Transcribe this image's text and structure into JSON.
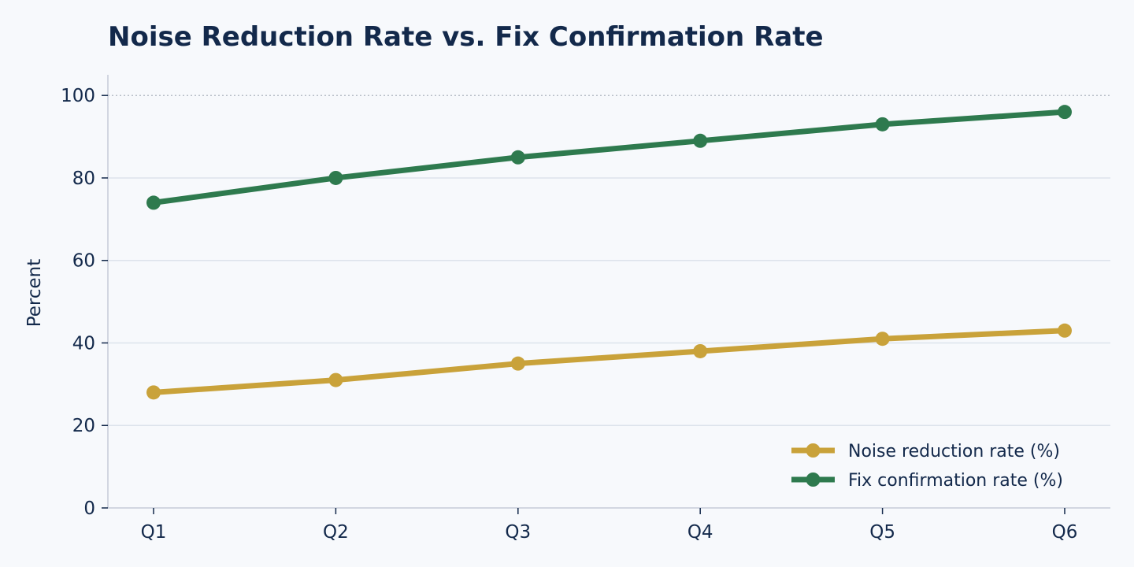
{
  "chart_data": {
    "type": "line",
    "title": "Noise Reduction Rate vs. Fix Confirmation Rate",
    "xlabel": "",
    "ylabel": "Percent",
    "categories": [
      "Q1",
      "Q2",
      "Q3",
      "Q4",
      "Q5",
      "Q6"
    ],
    "ylim": [
      0,
      105
    ],
    "yticks": [
      0,
      20,
      40,
      60,
      80,
      100
    ],
    "grid": true,
    "reference_line": 100,
    "legend_position": "bottom-right",
    "series": [
      {
        "name": "Noise reduction rate (%)",
        "values": [
          28,
          31,
          35,
          38,
          41,
          43
        ],
        "color": "#c9a23a"
      },
      {
        "name": "Fix confirmation rate (%)",
        "values": [
          74,
          80,
          85,
          89,
          93,
          96
        ],
        "color": "#2e7a4e"
      }
    ],
    "colors": {
      "background": "#f7f9fc",
      "text": "#13294b",
      "axis": "#c5cbd8",
      "grid": "#dde3ec",
      "reference": "#b8bec8"
    }
  }
}
